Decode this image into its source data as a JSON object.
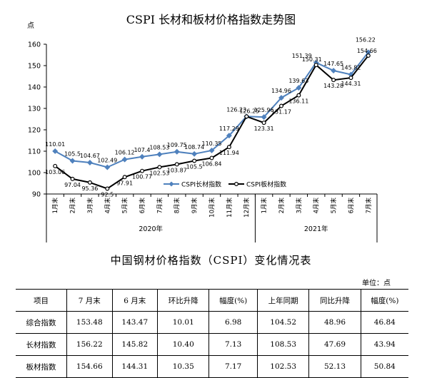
{
  "title": "CSPI 长材和板材价格指数走势图",
  "y_unit": "点",
  "legend": {
    "long": "CSPI长材指数",
    "plate": "CSPI板材指数"
  },
  "chart_data": {
    "type": "line",
    "title": "CSPI 长材和板材价格指数走势图",
    "ylabel": "点",
    "ylim": [
      90,
      160
    ],
    "yticks": [
      90,
      100,
      110,
      120,
      130,
      140,
      150,
      160
    ],
    "grid": false,
    "legend_position": "bottom-right",
    "categories": [
      "1月末",
      "2月末",
      "3月末",
      "4月末",
      "5月末",
      "6月末",
      "7月末",
      "8月末",
      "9月末",
      "10月末",
      "11月末",
      "12月末",
      "1月末",
      "2月末",
      "3月末",
      "4月末",
      "5月末",
      "6月末",
      "7月末"
    ],
    "year_groups": [
      {
        "label": "2020年",
        "count": 12
      },
      {
        "label": "2021年",
        "count": 7
      }
    ],
    "series": [
      {
        "name": "CSPI长材指数",
        "color": "#4f81bd",
        "values": [
          110.01,
          105.5,
          104.67,
          102.49,
          106.12,
          107.4,
          108.53,
          109.75,
          108.74,
          110.35,
          117.29,
          126.23,
          125.96,
          134.96,
          139.63,
          151.39,
          147.65,
          145.82,
          156.22
        ]
      },
      {
        "name": "CSPI板材指数",
        "color": "#000000",
        "values": [
          103.06,
          97.04,
          95.36,
          92.5,
          97.91,
          100.77,
          102.53,
          103.87,
          105.5,
          106.84,
          111.94,
          126.25,
          123.31,
          131.17,
          136.11,
          150.31,
          143.28,
          144.31,
          154.66
        ]
      }
    ]
  },
  "table": {
    "title": "中国钢材价格指数（CSPI）变化情况表",
    "unit": "单位：点",
    "headers": [
      "项目",
      "7 月末",
      "6 月末",
      "环比升降",
      "幅度(%)",
      "上年同期",
      "同比升降",
      "幅度(%)"
    ],
    "rows": [
      [
        "综合指数",
        "153.48",
        "143.47",
        "10.01",
        "6.98",
        "104.52",
        "48.96",
        "46.84"
      ],
      [
        "长材指数",
        "156.22",
        "145.82",
        "10.40",
        "7.13",
        "108.53",
        "47.69",
        "43.94"
      ],
      [
        "板材指数",
        "154.66",
        "144.31",
        "10.35",
        "7.17",
        "102.53",
        "52.13",
        "50.84"
      ]
    ]
  }
}
